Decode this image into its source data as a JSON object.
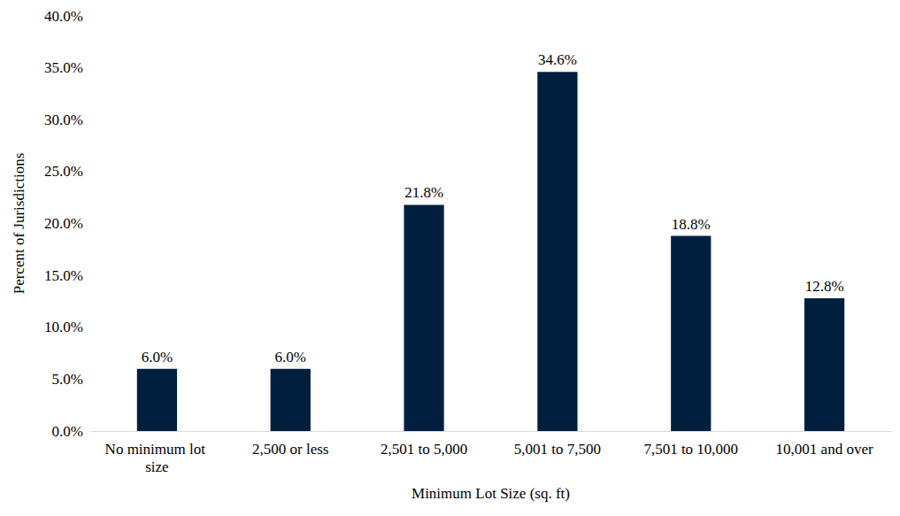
{
  "chart_data": {
    "type": "bar",
    "x_label": "Minimum Lot Size (sq. ft)",
    "y_label": "Percent of Jurisdictions",
    "categories": [
      "No minimum lot size",
      "2,500 or less",
      "2,501 to 5,000",
      "5,001 to 7,500",
      "7,501 to 10,000",
      "10,001 and over"
    ],
    "values": [
      6.0,
      6.0,
      21.8,
      34.6,
      18.8,
      12.8
    ],
    "value_labels": [
      "6.0%",
      "6.0%",
      "21.8%",
      "34.6%",
      "18.8%",
      "12.8%"
    ],
    "color": "#001f3f",
    "ylim": [
      0,
      40
    ],
    "yticks": [
      {
        "value": 0,
        "label": "0.0%"
      },
      {
        "value": 5,
        "label": "5.0%"
      },
      {
        "value": 10,
        "label": "10.0%"
      },
      {
        "value": 15,
        "label": "15.0%"
      },
      {
        "value": 20,
        "label": "20.0%"
      },
      {
        "value": 25,
        "label": "25.0%"
      },
      {
        "value": 30,
        "label": "30.0%"
      },
      {
        "value": 35,
        "label": "35.0%"
      },
      {
        "value": 40,
        "label": "40.0%"
      }
    ],
    "grid": false,
    "data_labels": true
  }
}
